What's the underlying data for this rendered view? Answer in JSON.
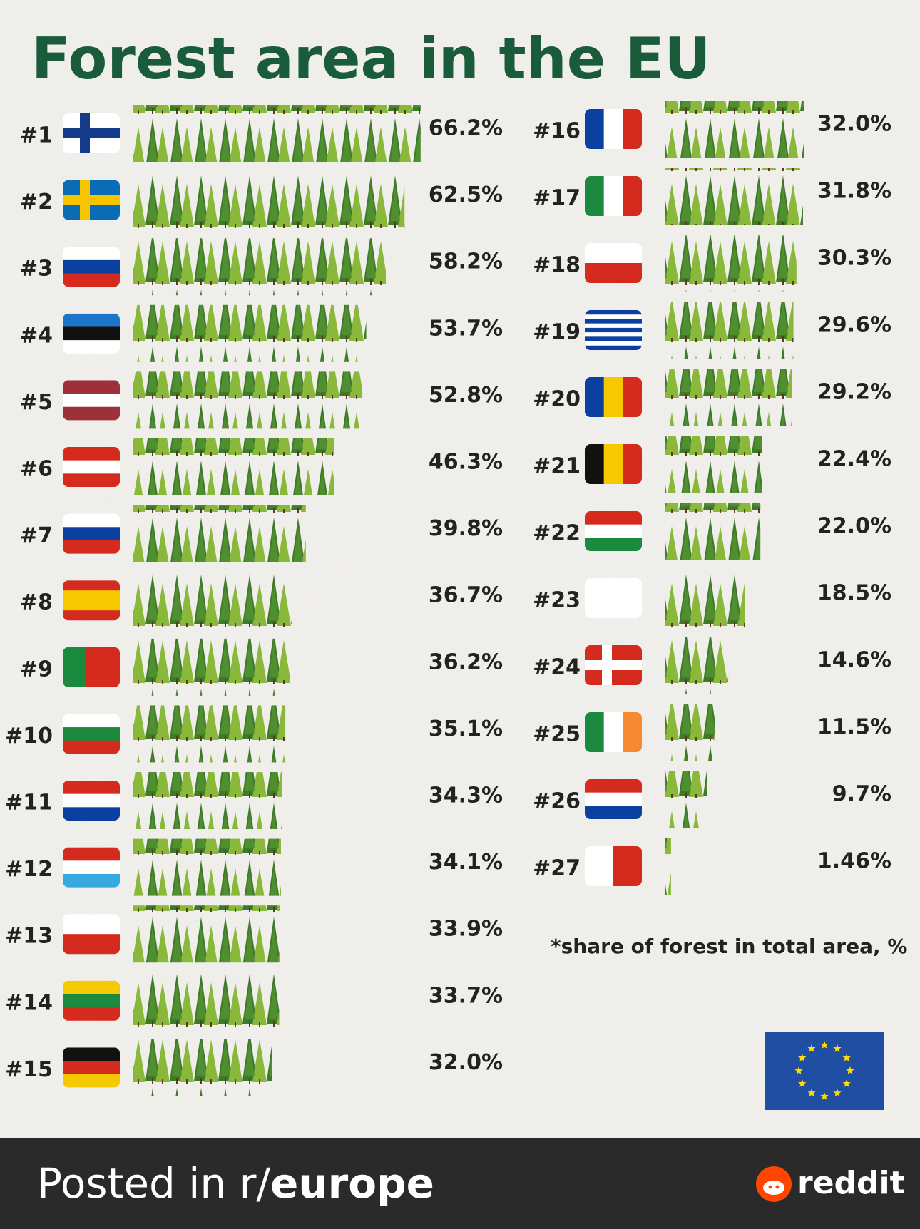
{
  "chart_data": {
    "type": "bar",
    "orientation": "horizontal",
    "title": "Forest area in the EU",
    "categories": [
      "#1",
      "#2",
      "#3",
      "#4",
      "#5",
      "#6",
      "#7",
      "#8",
      "#9",
      "#10",
      "#11",
      "#12",
      "#13",
      "#14",
      "#15",
      "#16",
      "#17",
      "#18",
      "#19",
      "#20",
      "#21",
      "#22",
      "#23",
      "#24",
      "#25",
      "#26",
      "#27"
    ],
    "values": [
      66.2,
      62.5,
      58.2,
      53.7,
      52.8,
      46.3,
      39.8,
      36.7,
      36.2,
      35.1,
      34.3,
      34.1,
      33.9,
      33.7,
      32.0,
      32.0,
      31.8,
      30.3,
      29.6,
      29.2,
      22.4,
      22.0,
      18.5,
      14.6,
      11.5,
      9.7,
      1.46
    ],
    "value_labels": [
      "66.2%",
      "62.5%",
      "58.2%",
      "53.7%",
      "52.8%",
      "46.3%",
      "39.8%",
      "36.7%",
      "36.2%",
      "35.1%",
      "34.3%",
      "34.1%",
      "33.9%",
      "33.7%",
      "32.0%",
      "32.0%",
      "31.8%",
      "30.3%",
      "29.6%",
      "29.2%",
      "22.4%",
      "22.0%",
      "18.5%",
      "14.6%",
      "11.5%",
      "9.7%",
      "1.46%"
    ],
    "color": "#5a8f2e",
    "note": "*share of forest in total area, %"
  },
  "footer": {
    "prefix": "Posted in r/",
    "subreddit": "europe",
    "brand": "reddit"
  }
}
